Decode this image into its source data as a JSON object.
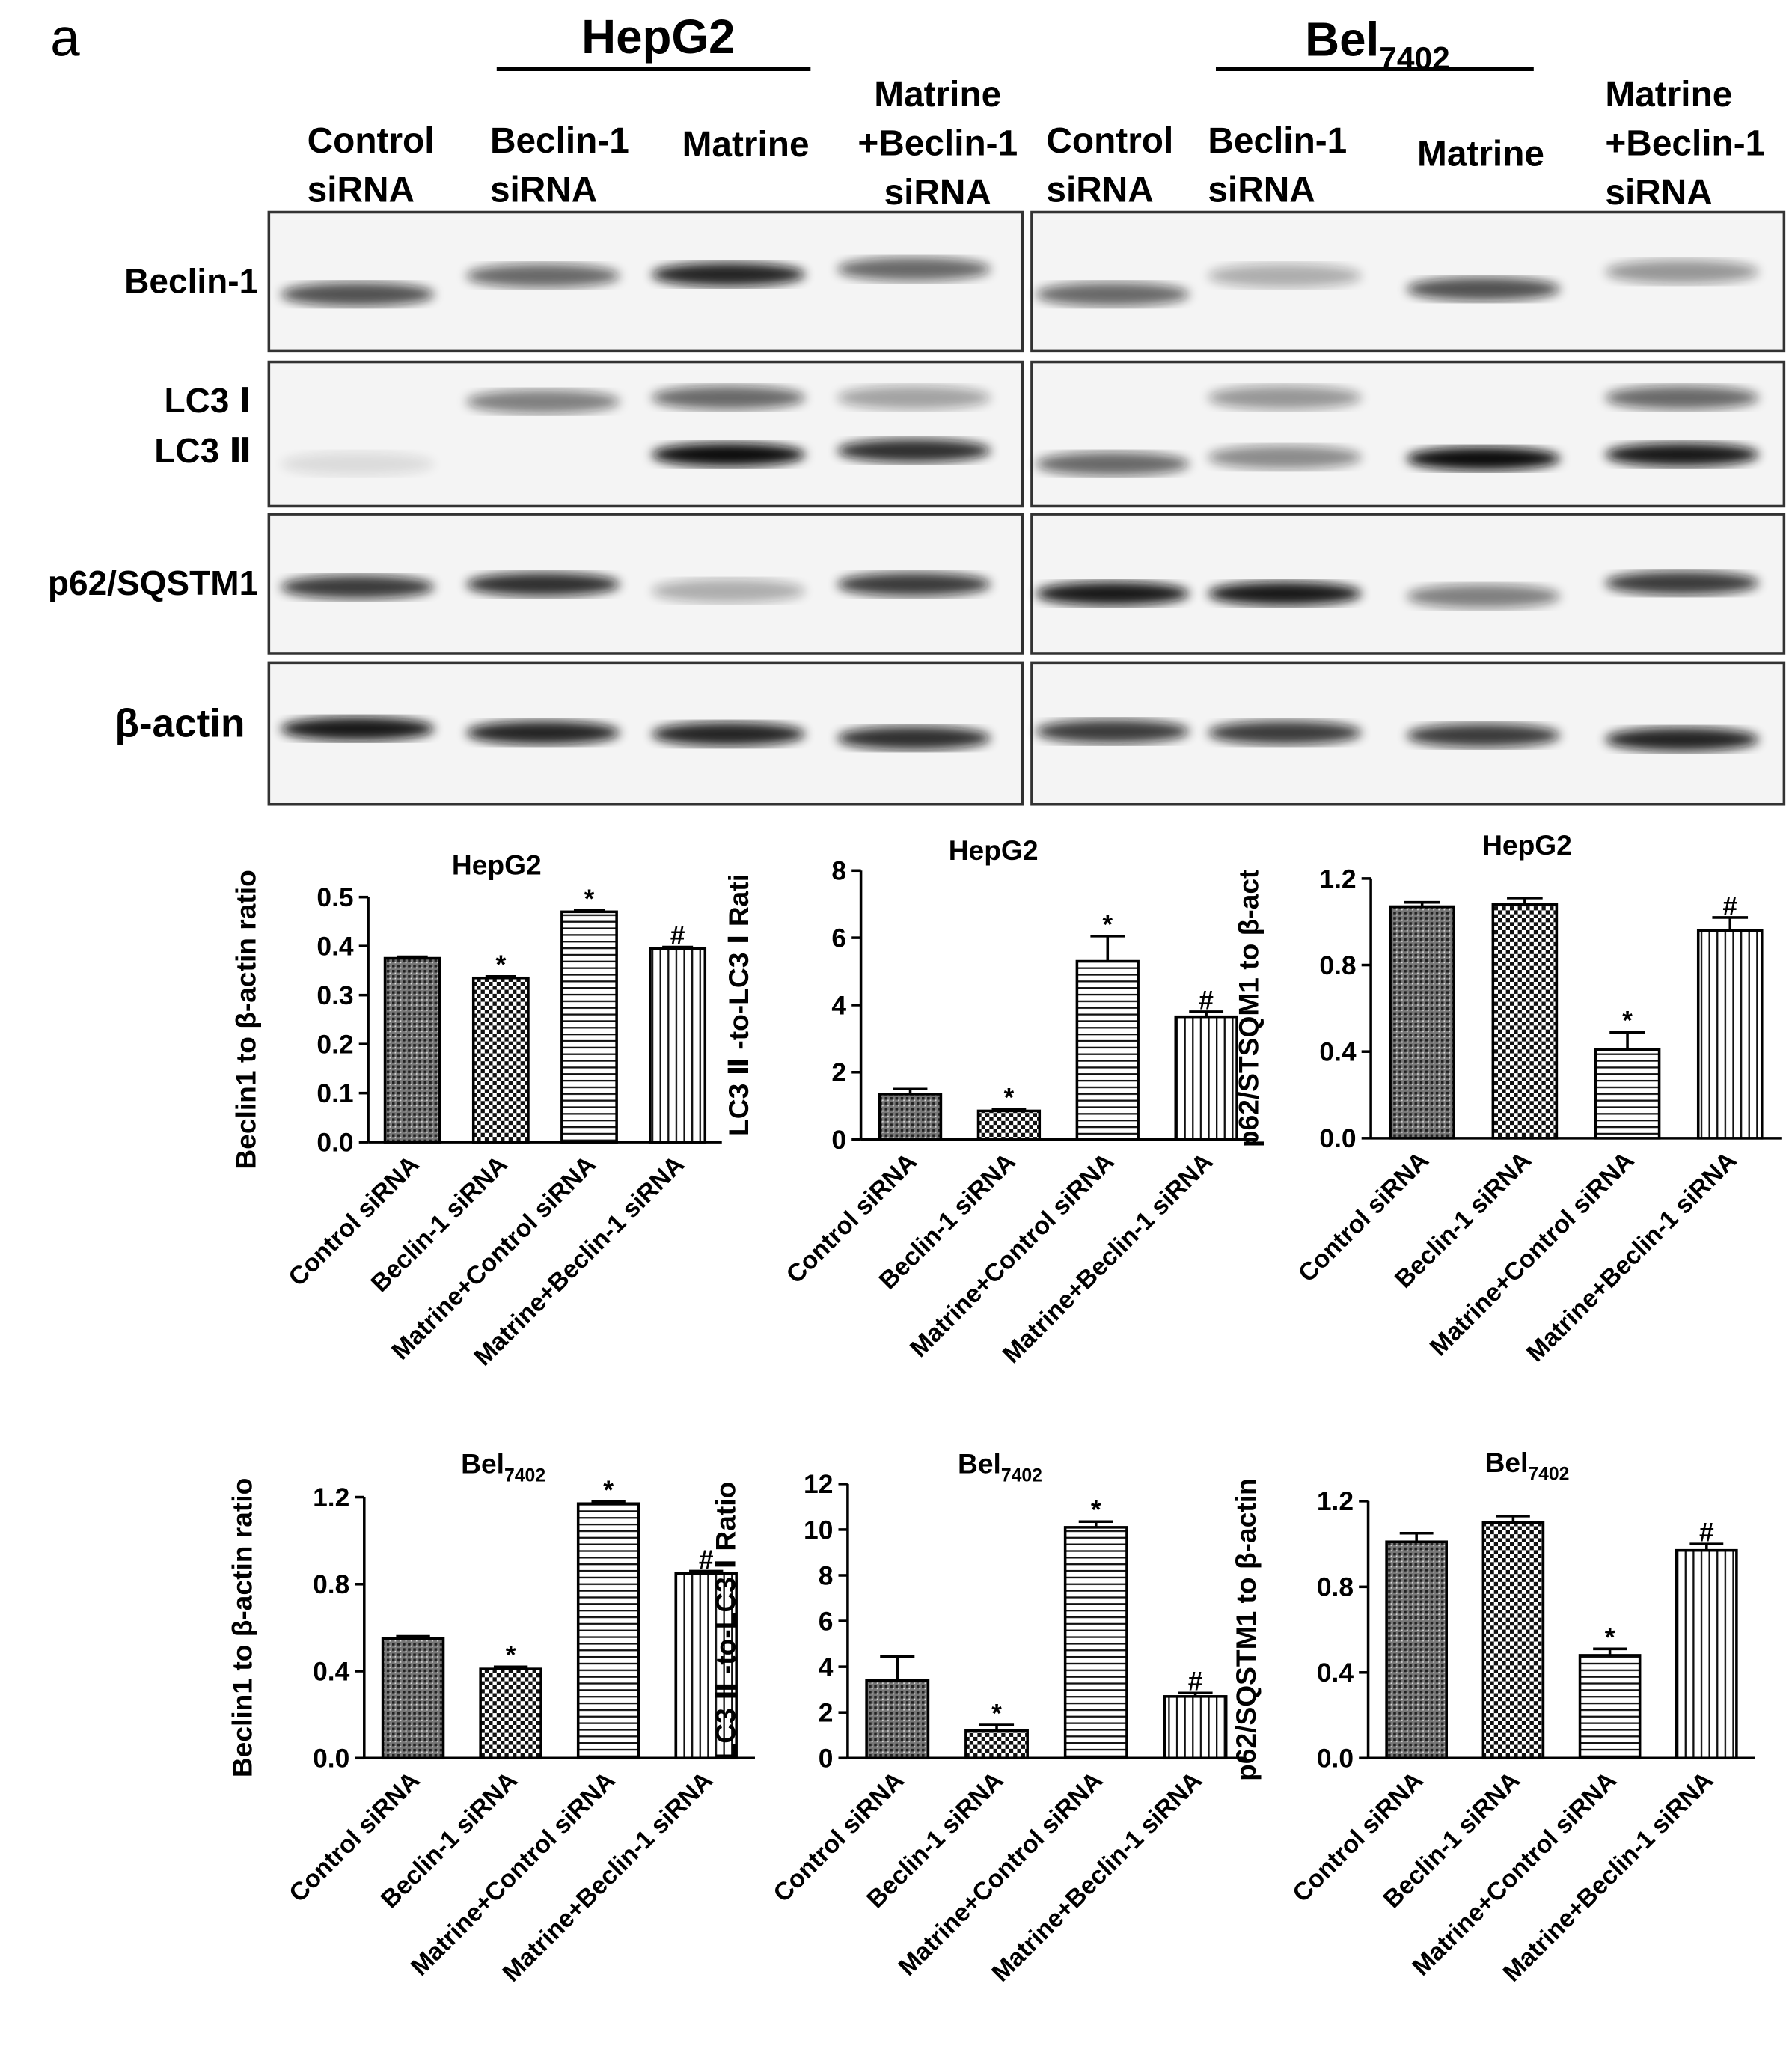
{
  "blot": {
    "panel_label": "a",
    "groups": [
      {
        "name": "HepG2"
      },
      {
        "name": "Bel",
        "sub": "7402"
      }
    ],
    "lanes": [
      [
        "Control",
        "siRNA"
      ],
      [
        "Beclin-1",
        "siRNA"
      ],
      [
        "Matrine"
      ],
      [
        "Matrine",
        "+Beclin-1",
        "siRNA"
      ],
      [
        "Control",
        "siRNA"
      ],
      [
        "Beclin-1",
        "siRNA"
      ],
      [
        "Matrine"
      ],
      [
        "Matrine",
        "+Beclin-1",
        "siRNA"
      ]
    ],
    "rows": [
      "Beclin-1",
      "LC3 Ⅰ",
      "LC3 Ⅱ",
      "p62/SQSTM1",
      "β-actin"
    ]
  },
  "chart_data": [
    {
      "type": "bar",
      "title": "HepG2",
      "ylabel": "Beclin1 to β-actin ratio",
      "color": "#000000",
      "categories": [
        "Control siRNA",
        "Beclin-1 siRNA",
        "Matrine+Control siRNA",
        "Matrine+Beclin-1 siRNA"
      ],
      "values": [
        0.375,
        0.335,
        0.47,
        0.395
      ],
      "errors": [
        0.003,
        0.003,
        0.003,
        0.003
      ],
      "marks": [
        null,
        "*",
        "*",
        "#"
      ],
      "ylim": [
        0,
        0.5
      ],
      "yticks": [
        {
          "value": 0,
          "label": "0.0"
        },
        0.1,
        0.2,
        0.3,
        0.4,
        0.5
      ]
    },
    {
      "type": "bar",
      "title": "HepG2",
      "ylabel": "LC3 Ⅱ -to-LC3 Ⅰ Rati",
      "color": "#000000",
      "categories": [
        "Control siRNA",
        "Beclin-1 siRNA",
        "Matrine+Control siRNA",
        "Matrine+Beclin-1 siRNA"
      ],
      "values": [
        1.35,
        0.85,
        5.3,
        3.65
      ],
      "errors": [
        0.15,
        0.05,
        0.75,
        0.15
      ],
      "marks": [
        null,
        "*",
        "*",
        "#"
      ],
      "ylim": [
        0,
        8
      ],
      "yticks": [
        0,
        2,
        4,
        6,
        8
      ]
    },
    {
      "type": "bar",
      "title": "HepG2",
      "ylabel": "p62/STSQM1 to β-act",
      "color": "#000000",
      "categories": [
        "Control siRNA",
        "Beclin-1 siRNA",
        "Matrine+Control siRNA",
        "Matrine+Beclin-1 siRNA"
      ],
      "values": [
        1.07,
        1.08,
        0.41,
        0.96
      ],
      "errors": [
        0.02,
        0.03,
        0.08,
        0.06
      ],
      "marks": [
        null,
        null,
        "*",
        "#"
      ],
      "ylim": [
        0,
        1.2
      ],
      "yticks": [
        {
          "value": 0,
          "label": "0.0"
        },
        0.4,
        0.8,
        1.2
      ]
    },
    {
      "type": "bar",
      "title": "Bel",
      "title_subscript": "7402",
      "ylabel": "Beclin1 to β-actin ratio",
      "color": "#000000",
      "categories": [
        "Control siRNA",
        "Beclin-1 siRNA",
        "Matrine+Control siRNA",
        "Matrine+Beclin-1 siRNA"
      ],
      "values": [
        0.55,
        0.41,
        1.17,
        0.85
      ],
      "errors": [
        0.01,
        0.01,
        0.01,
        0.01
      ],
      "marks": [
        null,
        "*",
        "*",
        "#"
      ],
      "ylim": [
        0,
        1.2
      ],
      "yticks": [
        {
          "value": 0,
          "label": "0.0"
        },
        0.4,
        0.8,
        1.2
      ]
    },
    {
      "type": "bar",
      "title": "Bel",
      "title_subscript": "7402",
      "ylabel": "LC3 Ⅱ -to-LC3 Ⅰ Ratio",
      "color": "#000000",
      "categories": [
        "Control siRNA",
        "Beclin-1 siRNA",
        "Matrine+Control siRNA",
        "Matrine+Beclin-1 siRNA"
      ],
      "values": [
        3.4,
        1.2,
        10.1,
        2.7
      ],
      "errors": [
        1.05,
        0.25,
        0.25,
        0.15
      ],
      "marks": [
        null,
        "*",
        "*",
        "#"
      ],
      "ylim": [
        0,
        12
      ],
      "yticks": [
        0,
        2,
        4,
        6,
        8,
        10,
        12
      ]
    },
    {
      "type": "bar",
      "title": "Bel",
      "title_subscript": "7402",
      "ylabel": "p62/SQSTM1 to β-actin",
      "color": "#000000",
      "categories": [
        "Control siRNA",
        "Beclin-1 siRNA",
        "Matrine+Control siRNA",
        "Matrine+Beclin-1 siRNA"
      ],
      "values": [
        1.01,
        1.1,
        0.48,
        0.97
      ],
      "errors": [
        0.04,
        0.03,
        0.03,
        0.03
      ],
      "marks": [
        null,
        null,
        "*",
        "#"
      ],
      "ylim": [
        0,
        1.2
      ],
      "yticks": [
        {
          "value": 0,
          "label": "0.0"
        },
        0.4,
        0.8,
        1.2
      ]
    }
  ]
}
